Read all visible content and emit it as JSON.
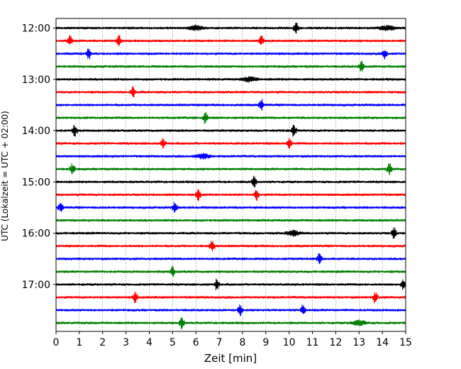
{
  "chart_data": {
    "type": "line",
    "subtype": "helicorder-seismogram",
    "xlabel": "Zeit  [min]",
    "ylabel": "UTC (Lokalzeit = UTC + 02:00)",
    "xlim": [
      0,
      15
    ],
    "x_ticks": [
      "0",
      "1",
      "2",
      "3",
      "4",
      "5",
      "6",
      "7",
      "8",
      "9",
      "10",
      "11",
      "12",
      "13",
      "14",
      "15"
    ],
    "y_tick_labels": [
      "12:00",
      "13:00",
      "14:00",
      "15:00",
      "16:00",
      "17:00"
    ],
    "grid": "vertical dotted lines at each minute",
    "color_cycle": [
      "#000000",
      "#ff0000",
      "#0000ff",
      "#008000"
    ],
    "trace_row_count": 24,
    "trace_row_start_times": [
      "12:00",
      "12:15",
      "12:30",
      "12:45",
      "13:00",
      "13:15",
      "13:30",
      "13:45",
      "14:00",
      "14:15",
      "14:30",
      "14:45",
      "15:00",
      "15:15",
      "15:30",
      "15:45",
      "16:00",
      "16:15",
      "16:30",
      "16:45",
      "17:00",
      "17:15",
      "17:30",
      "17:45"
    ],
    "notable_events": [
      {
        "row_start": "12:00",
        "minute": 6.0,
        "kind": "burst"
      },
      {
        "row_start": "12:00",
        "minute": 10.3,
        "kind": "spike"
      },
      {
        "row_start": "12:00",
        "minute": 14.2,
        "kind": "burst"
      },
      {
        "row_start": "12:15",
        "minute": 0.6,
        "kind": "spike"
      },
      {
        "row_start": "12:15",
        "minute": 2.7,
        "kind": "spike"
      },
      {
        "row_start": "12:15",
        "minute": 8.8,
        "kind": "spike"
      },
      {
        "row_start": "12:30",
        "minute": 1.4,
        "kind": "spike"
      },
      {
        "row_start": "12:30",
        "minute": 14.1,
        "kind": "spike"
      },
      {
        "row_start": "12:45",
        "minute": 13.1,
        "kind": "spike"
      },
      {
        "row_start": "13:00",
        "minute": 8.3,
        "kind": "burst"
      },
      {
        "row_start": "13:15",
        "minute": 3.3,
        "kind": "spike"
      },
      {
        "row_start": "13:30",
        "minute": 8.8,
        "kind": "spike"
      },
      {
        "row_start": "13:45",
        "minute": 6.4,
        "kind": "spike"
      },
      {
        "row_start": "14:00",
        "minute": 0.8,
        "kind": "spike"
      },
      {
        "row_start": "14:00",
        "minute": 10.2,
        "kind": "spike"
      },
      {
        "row_start": "14:15",
        "minute": 4.6,
        "kind": "spike"
      },
      {
        "row_start": "14:15",
        "minute": 10.0,
        "kind": "spike"
      },
      {
        "row_start": "14:30",
        "minute": 6.3,
        "kind": "burst"
      },
      {
        "row_start": "14:45",
        "minute": 0.7,
        "kind": "spike"
      },
      {
        "row_start": "14:45",
        "minute": 14.3,
        "kind": "spike"
      },
      {
        "row_start": "15:00",
        "minute": 8.5,
        "kind": "spike"
      },
      {
        "row_start": "15:15",
        "minute": 6.1,
        "kind": "spike"
      },
      {
        "row_start": "15:15",
        "minute": 8.6,
        "kind": "spike"
      },
      {
        "row_start": "15:30",
        "minute": 0.2,
        "kind": "spike"
      },
      {
        "row_start": "15:30",
        "minute": 5.1,
        "kind": "spike"
      },
      {
        "row_start": "16:00",
        "minute": 10.2,
        "kind": "burst"
      },
      {
        "row_start": "16:00",
        "minute": 14.5,
        "kind": "spike"
      },
      {
        "row_start": "16:15",
        "minute": 6.7,
        "kind": "spike"
      },
      {
        "row_start": "16:30",
        "minute": 11.3,
        "kind": "spike"
      },
      {
        "row_start": "16:45",
        "minute": 5.0,
        "kind": "spike"
      },
      {
        "row_start": "17:00",
        "minute": 6.9,
        "kind": "spike"
      },
      {
        "row_start": "17:00",
        "minute": 14.9,
        "kind": "spike"
      },
      {
        "row_start": "17:15",
        "minute": 3.4,
        "kind": "spike"
      },
      {
        "row_start": "17:15",
        "minute": 13.7,
        "kind": "spike"
      },
      {
        "row_start": "17:30",
        "minute": 7.9,
        "kind": "spike"
      },
      {
        "row_start": "17:30",
        "minute": 10.6,
        "kind": "spike"
      },
      {
        "row_start": "17:45",
        "minute": 5.4,
        "kind": "spike"
      },
      {
        "row_start": "17:45",
        "minute": 13.0,
        "kind": "burst"
      }
    ]
  }
}
